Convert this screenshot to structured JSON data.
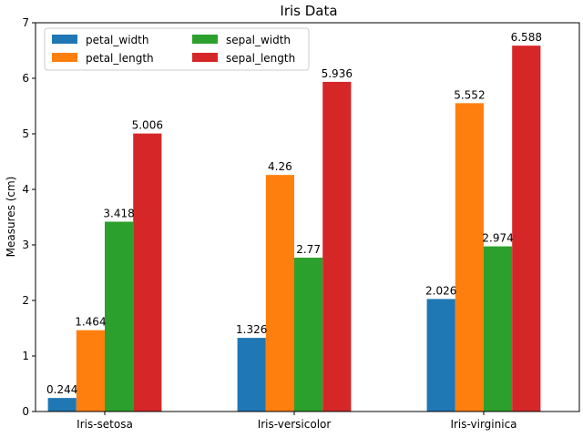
{
  "chart_data": {
    "type": "bar",
    "title": "Iris Data",
    "xlabel": "",
    "ylabel": "Measures (cm)",
    "ylim": [
      0,
      7
    ],
    "yticks": [
      0,
      1,
      2,
      3,
      4,
      5,
      6,
      7
    ],
    "grid": false,
    "legend": {
      "placement": "top-left",
      "columns": 2
    },
    "categories": [
      "Iris-setosa",
      "Iris-versicolor",
      "Iris-virginica"
    ],
    "series": [
      {
        "name": "petal_width",
        "color": "#1f77b4",
        "values": [
          0.244,
          1.326,
          2.026
        ],
        "labels": [
          "0.244",
          "1.326",
          "2.026"
        ]
      },
      {
        "name": "petal_length",
        "color": "#ff7f0e",
        "values": [
          1.464,
          4.26,
          5.552
        ],
        "labels": [
          "1.464",
          "4.26",
          "5.552"
        ]
      },
      {
        "name": "sepal_width",
        "color": "#2ca02c",
        "values": [
          3.418,
          2.77,
          2.974
        ],
        "labels": [
          "3.418",
          "2.77",
          "2.974"
        ]
      },
      {
        "name": "sepal_length",
        "color": "#d62728",
        "values": [
          5.006,
          5.936,
          6.588
        ],
        "labels": [
          "5.006",
          "5.936",
          "6.588"
        ]
      }
    ]
  }
}
